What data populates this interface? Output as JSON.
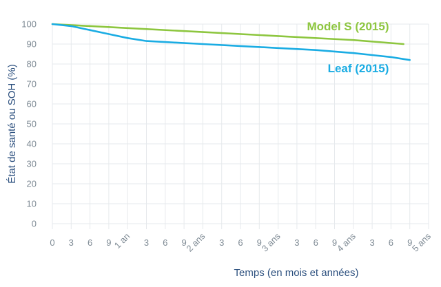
{
  "chart_data": {
    "type": "line",
    "title": "",
    "xlabel": "Temps (en mois et années)",
    "ylabel": "État de santé ou SOH (%)",
    "ylim": [
      0,
      100
    ],
    "xlim": [
      0,
      60
    ],
    "y_ticks": [
      0,
      10,
      20,
      30,
      40,
      50,
      60,
      70,
      80,
      90,
      100
    ],
    "x_tick_labels": [
      "0",
      "3",
      "6",
      "9",
      "1 an",
      "3",
      "6",
      "9",
      "2 ans",
      "3",
      "6",
      "9",
      "3 ans",
      "3",
      "6",
      "9",
      "4 ans",
      "3",
      "6",
      "9",
      "5 ans"
    ],
    "grid": true,
    "series": [
      {
        "name": "Model S (2015)",
        "color": "#8dc63f",
        "x": [
          0,
          12,
          24,
          36,
          48,
          56
        ],
        "y": [
          100,
          98,
          96,
          94,
          92,
          90
        ]
      },
      {
        "name": "Leaf (2015)",
        "color": "#1aace3",
        "x": [
          0,
          3,
          6,
          9,
          12,
          15,
          18,
          24,
          30,
          36,
          42,
          48,
          51,
          54,
          56,
          57
        ],
        "y": [
          100,
          99,
          97,
          95,
          93,
          91.5,
          91,
          90,
          89,
          88,
          87,
          85.5,
          84.5,
          83.5,
          82.5,
          82
        ]
      }
    ]
  }
}
